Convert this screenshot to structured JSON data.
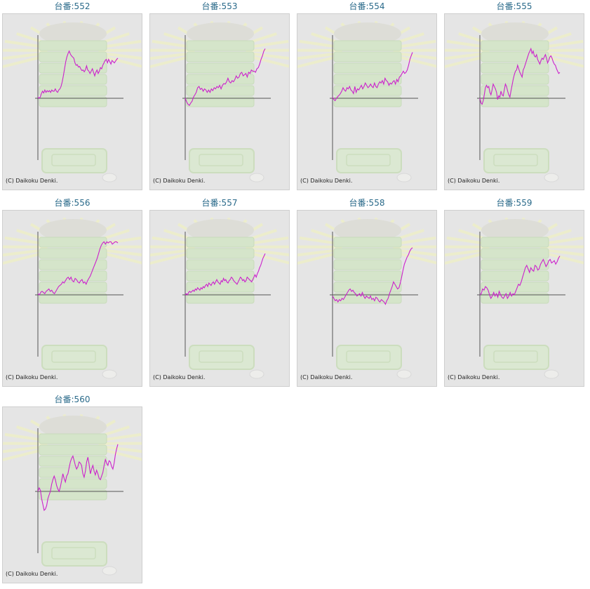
{
  "copyright": "(C) Daikoku Denki.",
  "colors": {
    "line": "#cc22cc",
    "axis": "#555555",
    "bg": "#e5e5e5",
    "title": "#2a6a8a"
  },
  "chart_data": [
    {
      "type": "line",
      "title": "台番:552",
      "x_range": [
        0,
        1
      ],
      "y_range": [
        -1,
        1
      ],
      "values": [
        0.02,
        0.0,
        0.02,
        0.08,
        0.12,
        0.09,
        0.14,
        0.1,
        0.13,
        0.11,
        0.13,
        0.1,
        0.14,
        0.12,
        0.12,
        0.16,
        0.12,
        0.1,
        0.14,
        0.16,
        0.2,
        0.28,
        0.38,
        0.5,
        0.62,
        0.7,
        0.76,
        0.8,
        0.75,
        0.72,
        0.7,
        0.68,
        0.6,
        0.56,
        0.57,
        0.53,
        0.54,
        0.5,
        0.47,
        0.48,
        0.45,
        0.48,
        0.55,
        0.48,
        0.46,
        0.42,
        0.46,
        0.5,
        0.44,
        0.38,
        0.44,
        0.48,
        0.42,
        0.46,
        0.52,
        0.5,
        0.56,
        0.6,
        0.64,
        0.66,
        0.6,
        0.66,
        0.62,
        0.58,
        0.64,
        0.62,
        0.6,
        0.63,
        0.66,
        0.68
      ]
    },
    {
      "type": "line",
      "title": "台番:553",
      "x_range": [
        0,
        1
      ],
      "y_range": [
        -1,
        1
      ],
      "values": [
        0.0,
        -0.06,
        -0.1,
        -0.12,
        -0.08,
        -0.05,
        0.02,
        0.06,
        0.1,
        0.18,
        0.2,
        0.15,
        0.17,
        0.12,
        0.16,
        0.14,
        0.1,
        0.14,
        0.1,
        0.16,
        0.13,
        0.18,
        0.16,
        0.2,
        0.18,
        0.22,
        0.16,
        0.22,
        0.25,
        0.24,
        0.28,
        0.34,
        0.28,
        0.26,
        0.3,
        0.28,
        0.32,
        0.38,
        0.34,
        0.36,
        0.42,
        0.44,
        0.38,
        0.4,
        0.42,
        0.36,
        0.44,
        0.42,
        0.48,
        0.46,
        0.46,
        0.44,
        0.5,
        0.52,
        0.58,
        0.66,
        0.72,
        0.8,
        0.84
      ]
    },
    {
      "type": "line",
      "title": "台番:554",
      "x_range": [
        0,
        1
      ],
      "y_range": [
        -1,
        1
      ],
      "values": [
        0.02,
        -0.02,
        -0.04,
        0.0,
        0.03,
        0.05,
        0.08,
        0.12,
        0.18,
        0.14,
        0.12,
        0.18,
        0.16,
        0.2,
        0.14,
        0.12,
        0.08,
        0.2,
        0.1,
        0.16,
        0.14,
        0.18,
        0.22,
        0.16,
        0.2,
        0.26,
        0.22,
        0.18,
        0.2,
        0.24,
        0.2,
        0.18,
        0.26,
        0.2,
        0.18,
        0.24,
        0.28,
        0.26,
        0.3,
        0.24,
        0.34,
        0.3,
        0.28,
        0.22,
        0.26,
        0.24,
        0.28,
        0.3,
        0.24,
        0.32,
        0.28,
        0.36,
        0.38,
        0.42,
        0.46,
        0.42,
        0.44,
        0.48,
        0.56,
        0.66,
        0.72,
        0.78
      ]
    },
    {
      "type": "line",
      "title": "台番:555",
      "x_range": [
        0,
        1
      ],
      "y_range": [
        -1,
        1
      ],
      "values": [
        0.0,
        -0.08,
        -0.1,
        -0.04,
        0.06,
        0.18,
        0.22,
        0.18,
        0.2,
        0.1,
        0.06,
        0.14,
        0.24,
        0.2,
        0.16,
        0.1,
        -0.02,
        0.04,
        0.02,
        0.12,
        0.06,
        0.04,
        0.14,
        0.24,
        0.2,
        0.12,
        0.06,
        0.02,
        0.12,
        0.22,
        0.32,
        0.4,
        0.46,
        0.48,
        0.56,
        0.5,
        0.44,
        0.4,
        0.36,
        0.48,
        0.52,
        0.58,
        0.64,
        0.7,
        0.76,
        0.8,
        0.84,
        0.76,
        0.8,
        0.72,
        0.7,
        0.74,
        0.66,
        0.62,
        0.58,
        0.64,
        0.68,
        0.66,
        0.7,
        0.74,
        0.68,
        0.6,
        0.64,
        0.7,
        0.72,
        0.68,
        0.62,
        0.58,
        0.56,
        0.5,
        0.46,
        0.42,
        0.44
      ]
    },
    {
      "type": "line",
      "title": "台番:556",
      "x_range": [
        0,
        1
      ],
      "y_range": [
        -1,
        1
      ],
      "values": [
        0.02,
        0.0,
        0.04,
        0.06,
        0.04,
        0.02,
        0.06,
        0.08,
        0.1,
        0.06,
        0.08,
        0.04,
        0.02,
        0.06,
        0.1,
        0.14,
        0.16,
        0.18,
        0.22,
        0.2,
        0.24,
        0.28,
        0.3,
        0.26,
        0.3,
        0.24,
        0.22,
        0.28,
        0.26,
        0.22,
        0.2,
        0.24,
        0.26,
        0.2,
        0.22,
        0.18,
        0.24,
        0.28,
        0.32,
        0.38,
        0.44,
        0.5,
        0.56,
        0.62,
        0.7,
        0.78,
        0.84,
        0.88,
        0.9,
        0.86,
        0.9,
        0.88,
        0.9,
        0.9,
        0.86,
        0.88,
        0.9,
        0.9,
        0.88
      ]
    },
    {
      "type": "line",
      "title": "台番:557",
      "x_range": [
        0,
        1
      ],
      "y_range": [
        -1,
        1
      ],
      "values": [
        0.0,
        0.02,
        0.0,
        0.04,
        0.06,
        0.04,
        0.06,
        0.08,
        0.06,
        0.1,
        0.08,
        0.12,
        0.1,
        0.08,
        0.12,
        0.1,
        0.14,
        0.12,
        0.16,
        0.18,
        0.14,
        0.2,
        0.18,
        0.16,
        0.2,
        0.22,
        0.18,
        0.22,
        0.26,
        0.22,
        0.2,
        0.18,
        0.24,
        0.22,
        0.28,
        0.24,
        0.26,
        0.22,
        0.2,
        0.24,
        0.26,
        0.3,
        0.28,
        0.24,
        0.22,
        0.2,
        0.18,
        0.22,
        0.26,
        0.3,
        0.28,
        0.24,
        0.26,
        0.22,
        0.24,
        0.3,
        0.28,
        0.26,
        0.24,
        0.22,
        0.26,
        0.3,
        0.34,
        0.3,
        0.36,
        0.4,
        0.46,
        0.5,
        0.56,
        0.62,
        0.66,
        0.7
      ]
    },
    {
      "type": "line",
      "title": "台番:558",
      "x_range": [
        0,
        1
      ],
      "y_range": [
        -1,
        1
      ],
      "values": [
        -0.02,
        -0.06,
        -0.1,
        -0.08,
        -0.12,
        -0.08,
        -0.1,
        -0.06,
        -0.08,
        -0.04,
        0.0,
        0.04,
        0.08,
        0.1,
        0.06,
        0.08,
        0.04,
        0.02,
        -0.02,
        0.0,
        0.02,
        -0.02,
        0.04,
        -0.02,
        -0.06,
        -0.02,
        -0.04,
        -0.06,
        -0.02,
        -0.08,
        -0.06,
        -0.1,
        -0.04,
        -0.06,
        -0.1,
        -0.12,
        -0.08,
        -0.1,
        -0.12,
        -0.16,
        -0.1,
        -0.06,
        0.02,
        0.08,
        0.14,
        0.22,
        0.18,
        0.14,
        0.1,
        0.12,
        0.2,
        0.3,
        0.42,
        0.52,
        0.58,
        0.64,
        0.68,
        0.74,
        0.78,
        0.8
      ]
    },
    {
      "type": "line",
      "title": "台番:559",
      "x_range": [
        0,
        1
      ],
      "y_range": [
        -1,
        1
      ],
      "values": [
        0.0,
        0.02,
        0.1,
        0.08,
        0.14,
        0.12,
        0.08,
        0.0,
        -0.06,
        -0.02,
        0.04,
        -0.02,
        0.02,
        -0.04,
        0.06,
        0.0,
        -0.04,
        -0.06,
        -0.02,
        0.02,
        -0.06,
        -0.02,
        0.04,
        -0.02,
        0.02,
        0.0,
        0.06,
        0.12,
        0.18,
        0.16,
        0.22,
        0.3,
        0.38,
        0.46,
        0.5,
        0.44,
        0.38,
        0.46,
        0.42,
        0.4,
        0.5,
        0.48,
        0.42,
        0.44,
        0.52,
        0.56,
        0.6,
        0.54,
        0.48,
        0.52,
        0.58,
        0.6,
        0.54,
        0.56,
        0.58,
        0.52,
        0.56,
        0.62,
        0.66
      ]
    },
    {
      "type": "line",
      "title": "台番:560",
      "x_range": [
        0,
        1
      ],
      "y_range": [
        -1,
        1
      ],
      "values": [
        0.0,
        0.06,
        0.02,
        -0.12,
        -0.22,
        -0.32,
        -0.3,
        -0.24,
        -0.12,
        -0.06,
        0.0,
        0.12,
        0.2,
        0.26,
        0.2,
        0.1,
        0.04,
        0.0,
        0.08,
        0.18,
        0.3,
        0.22,
        0.16,
        0.26,
        0.3,
        0.4,
        0.5,
        0.56,
        0.6,
        0.52,
        0.44,
        0.38,
        0.42,
        0.5,
        0.48,
        0.44,
        0.3,
        0.24,
        0.34,
        0.5,
        0.58,
        0.46,
        0.3,
        0.38,
        0.44,
        0.34,
        0.28,
        0.36,
        0.3,
        0.22,
        0.2,
        0.26,
        0.32,
        0.44,
        0.54,
        0.48,
        0.44,
        0.52,
        0.5,
        0.42,
        0.38,
        0.48,
        0.62,
        0.72,
        0.8
      ]
    }
  ]
}
